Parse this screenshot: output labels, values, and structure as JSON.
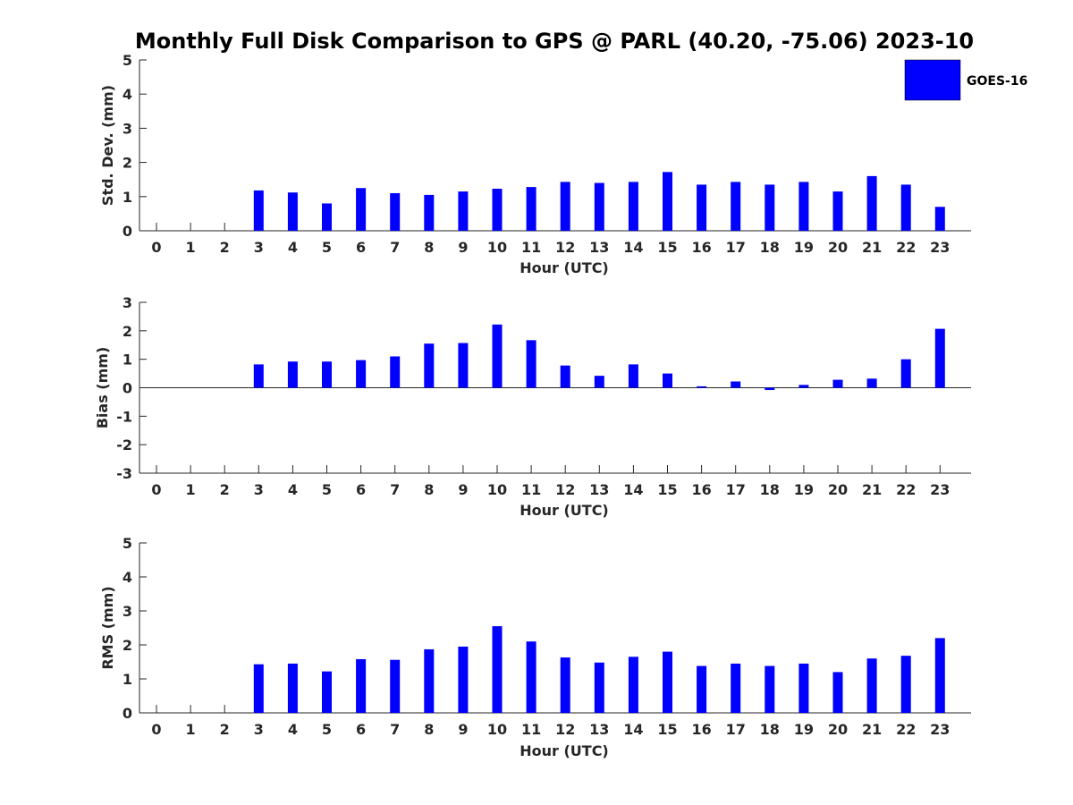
{
  "title": "Monthly Full Disk Comparison to GPS @ PARL (40.20, -75.06) 2023-10",
  "legend": {
    "label": "GOES-16",
    "color": "#0000ff",
    "position": "top-right"
  },
  "chart_data": [
    {
      "type": "bar",
      "xlabel": "Hour (UTC)",
      "ylabel": "Std. Dev. (mm)",
      "ylim": [
        0,
        5
      ],
      "yticks": [
        "0",
        "1",
        "2",
        "3",
        "4",
        "5"
      ],
      "categories": [
        "0",
        "1",
        "2",
        "3",
        "4",
        "5",
        "6",
        "7",
        "8",
        "9",
        "10",
        "11",
        "12",
        "13",
        "14",
        "15",
        "16",
        "17",
        "18",
        "19",
        "20",
        "21",
        "22",
        "23"
      ],
      "series": [
        {
          "name": "GOES-16",
          "color": "#0000ff",
          "values": [
            null,
            null,
            null,
            1.18,
            1.12,
            0.8,
            1.25,
            1.1,
            1.05,
            1.15,
            1.23,
            1.28,
            1.43,
            1.4,
            1.43,
            1.72,
            1.35,
            1.43,
            1.35,
            1.43,
            1.15,
            1.6,
            1.35,
            0.7
          ]
        }
      ]
    },
    {
      "type": "bar",
      "xlabel": "Hour (UTC)",
      "ylabel": "Bias (mm)",
      "ylim": [
        -3,
        3
      ],
      "yticks": [
        "-3",
        "-2",
        "-1",
        "0",
        "1",
        "2",
        "3"
      ],
      "categories": [
        "0",
        "1",
        "2",
        "3",
        "4",
        "5",
        "6",
        "7",
        "8",
        "9",
        "10",
        "11",
        "12",
        "13",
        "14",
        "15",
        "16",
        "17",
        "18",
        "19",
        "20",
        "21",
        "22",
        "23"
      ],
      "series": [
        {
          "name": "GOES-16",
          "color": "#0000ff",
          "values": [
            null,
            null,
            null,
            0.82,
            0.92,
            0.92,
            0.97,
            1.1,
            1.55,
            1.57,
            2.22,
            1.67,
            0.78,
            0.42,
            0.82,
            0.5,
            0.05,
            0.22,
            -0.08,
            0.1,
            0.28,
            0.32,
            1.0,
            2.07
          ]
        }
      ]
    },
    {
      "type": "bar",
      "xlabel": "Hour (UTC)",
      "ylabel": "RMS (mm)",
      "ylim": [
        0,
        5
      ],
      "yticks": [
        "0",
        "1",
        "2",
        "3",
        "4",
        "5"
      ],
      "categories": [
        "0",
        "1",
        "2",
        "3",
        "4",
        "5",
        "6",
        "7",
        "8",
        "9",
        "10",
        "11",
        "12",
        "13",
        "14",
        "15",
        "16",
        "17",
        "18",
        "19",
        "20",
        "21",
        "22",
        "23"
      ],
      "series": [
        {
          "name": "GOES-16",
          "color": "#0000ff",
          "values": [
            null,
            null,
            null,
            1.43,
            1.45,
            1.22,
            1.58,
            1.56,
            1.87,
            1.95,
            2.55,
            2.1,
            1.63,
            1.48,
            1.65,
            1.8,
            1.38,
            1.45,
            1.38,
            1.45,
            1.2,
            1.6,
            1.68,
            2.2
          ]
        }
      ]
    }
  ]
}
